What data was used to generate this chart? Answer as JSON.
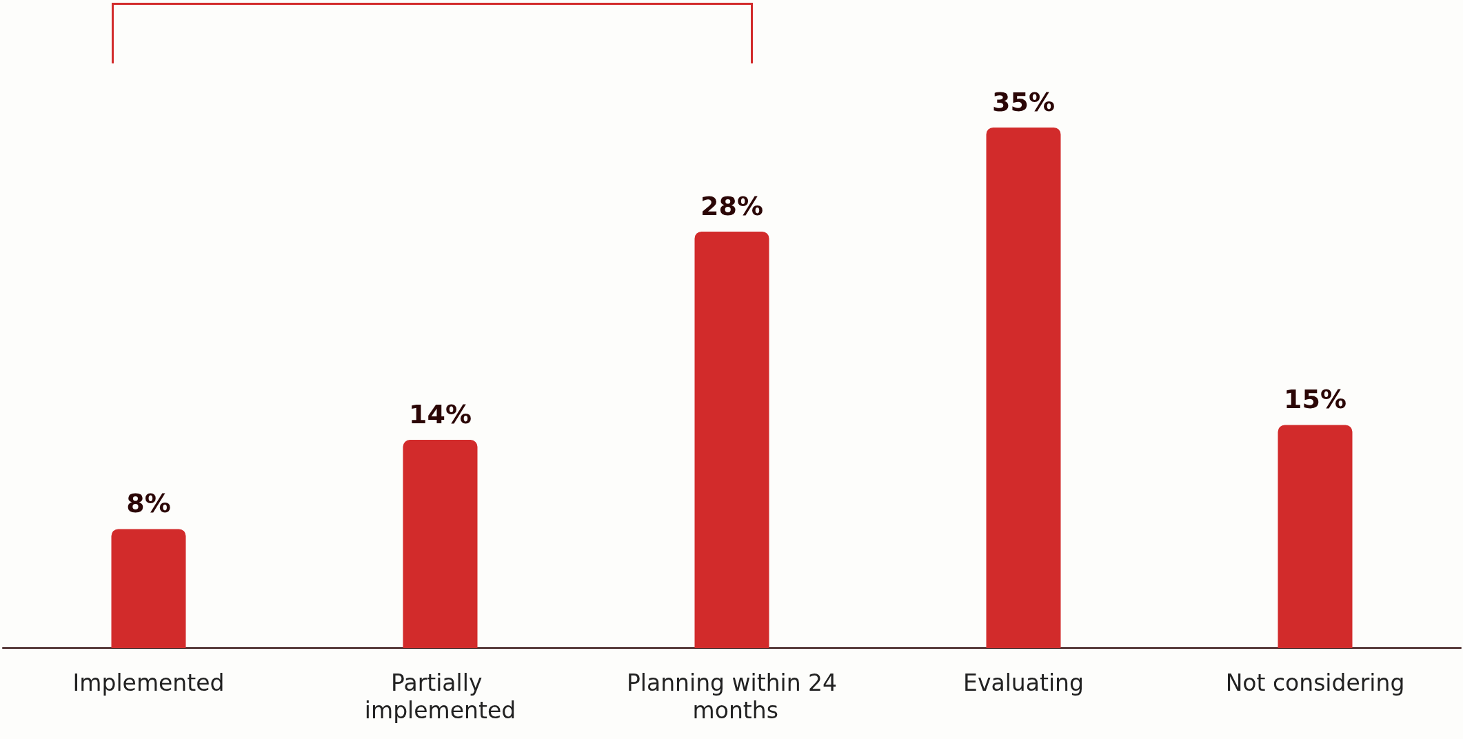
{
  "chart_data": {
    "type": "bar",
    "categories": [
      "Implemented",
      "Partially implemented",
      "Planning within 24 months",
      "Evaluating",
      "Not considering"
    ],
    "values": [
      8,
      14,
      28,
      35,
      15
    ],
    "value_labels": [
      "8%",
      "14%",
      "28%",
      "35%",
      "15%"
    ],
    "color": "#d22b2b"
  }
}
